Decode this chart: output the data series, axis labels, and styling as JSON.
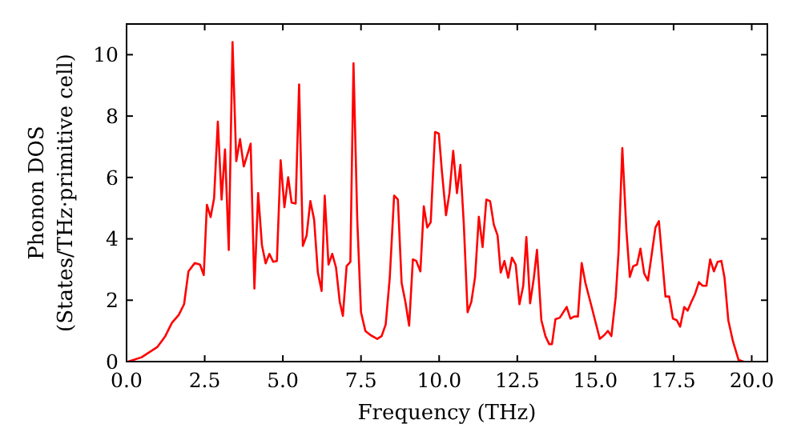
{
  "chart_data": {
    "type": "line",
    "xlabel": "Frequency (THz)",
    "ylabel": "Phonon DOS\n(States/THz·primitive cell)",
    "xlim": [
      0,
      20.5
    ],
    "ylim": [
      0,
      11
    ],
    "xticks": [
      {
        "value": 0,
        "label": "0.0"
      },
      {
        "value": 2.5,
        "label": "2.5"
      },
      {
        "value": 5,
        "label": "5.0"
      },
      {
        "value": 7.5,
        "label": "7.5"
      },
      {
        "value": 10,
        "label": "10.0"
      },
      {
        "value": 12.5,
        "label": "12.5"
      },
      {
        "value": 15,
        "label": "15.0"
      },
      {
        "value": 17.5,
        "label": "17.5"
      },
      {
        "value": 20,
        "label": "20.0"
      }
    ],
    "yticks": [
      0,
      2,
      4,
      6,
      8,
      10
    ],
    "grid": false,
    "marker": "none",
    "line_style": "solid",
    "series": [
      {
        "color": "#ff0000",
        "x": [
          0.05,
          0.48,
          0.99,
          1.24,
          1.45,
          1.67,
          1.84,
          1.98,
          2.18,
          2.35,
          2.47,
          2.57,
          2.69,
          2.8,
          2.92,
          3.04,
          3.15,
          3.27,
          3.39,
          3.51,
          3.63,
          3.75,
          3.97,
          4.09,
          4.21,
          4.33,
          4.45,
          4.57,
          4.69,
          4.81,
          4.93,
          5.05,
          5.17,
          5.28,
          5.41,
          5.52,
          5.64,
          5.76,
          5.88,
          6.0,
          6.12,
          6.24,
          6.34,
          6.46,
          6.58,
          6.7,
          6.82,
          6.92,
          7.04,
          7.16,
          7.26,
          7.38,
          7.5,
          7.64,
          7.81,
          8.02,
          8.16,
          8.29,
          8.42,
          8.56,
          8.68,
          8.8,
          8.92,
          9.04,
          9.16,
          9.27,
          9.4,
          9.51,
          9.62,
          9.73,
          9.87,
          9.99,
          10.09,
          10.22,
          10.33,
          10.45,
          10.57,
          10.68,
          10.79,
          10.91,
          11.03,
          11.15,
          11.27,
          11.39,
          11.51,
          11.63,
          11.75,
          11.87,
          11.97,
          12.09,
          12.21,
          12.33,
          12.45,
          12.57,
          12.69,
          12.79,
          12.91,
          13.03,
          13.13,
          13.27,
          13.4,
          13.52,
          13.61,
          13.72,
          13.86,
          14.08,
          14.2,
          14.32,
          14.44,
          14.56,
          14.68,
          14.88,
          15.14,
          15.28,
          15.4,
          15.51,
          15.65,
          15.74,
          15.86,
          15.99,
          16.1,
          16.21,
          16.33,
          16.44,
          16.56,
          16.68,
          16.79,
          16.92,
          17.03,
          17.24,
          17.36,
          17.48,
          17.6,
          17.71,
          17.84,
          17.95,
          18.07,
          18.19,
          18.31,
          18.43,
          18.55,
          18.67,
          18.79,
          18.91,
          19.03,
          19.13,
          19.25,
          19.4,
          19.58,
          19.74
        ],
        "values": [
          0,
          0.14,
          0.48,
          0.83,
          1.26,
          1.52,
          1.87,
          2.94,
          3.21,
          3.16,
          2.82,
          5.11,
          4.71,
          5.32,
          7.82,
          5.28,
          6.91,
          3.64,
          10.41,
          6.53,
          7.25,
          6.36,
          7.1,
          2.38,
          5.49,
          3.8,
          3.2,
          3.51,
          3.25,
          3.28,
          6.56,
          5.03,
          6.01,
          5.18,
          5.15,
          9.03,
          3.77,
          4.11,
          5.23,
          4.63,
          2.9,
          2.3,
          5.41,
          3.16,
          3.51,
          3.07,
          1.95,
          1.49,
          3.11,
          3.25,
          9.72,
          4.63,
          1.61,
          1.0,
          0.86,
          0.74,
          0.83,
          1.21,
          2.73,
          5.41,
          5.28,
          2.56,
          1.95,
          1.17,
          3.33,
          3.28,
          2.94,
          5.06,
          4.37,
          4.54,
          7.48,
          7.43,
          6.18,
          4.77,
          5.49,
          6.87,
          5.49,
          6.41,
          4.46,
          1.61,
          1.95,
          2.76,
          4.72,
          3.73,
          5.28,
          5.23,
          4.46,
          4.11,
          2.9,
          3.28,
          2.73,
          3.39,
          3.16,
          1.87,
          2.47,
          4.06,
          1.9,
          2.73,
          3.64,
          1.35,
          0.83,
          0.57,
          0.57,
          1.38,
          1.43,
          1.78,
          1.4,
          1.47,
          1.47,
          3.21,
          2.56,
          1.78,
          0.74,
          0.86,
          1.0,
          0.83,
          2.12,
          3.59,
          6.96,
          4.28,
          2.76,
          3.11,
          3.16,
          3.68,
          2.87,
          2.64,
          3.42,
          4.37,
          4.58,
          2.12,
          2.12,
          1.4,
          1.35,
          1.14,
          1.78,
          1.66,
          1.95,
          2.21,
          2.59,
          2.47,
          2.47,
          3.33,
          2.94,
          3.25,
          3.28,
          2.73,
          1.35,
          0.66,
          0.05,
          0
        ]
      }
    ]
  }
}
